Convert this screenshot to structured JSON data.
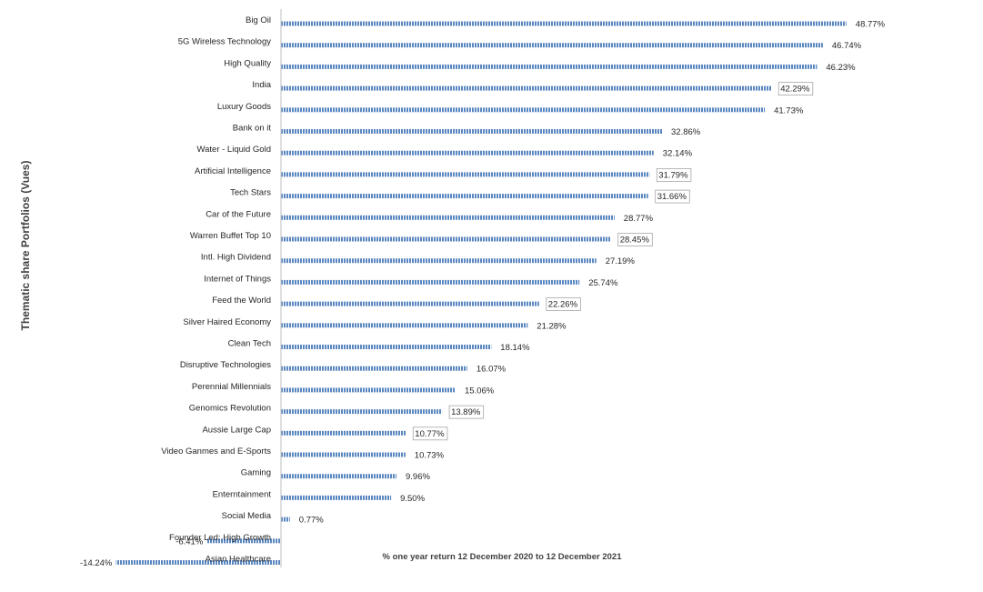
{
  "chart_data": {
    "type": "bar",
    "orientation": "horizontal",
    "title": "",
    "xlabel": "% one year return 12 December 2020 to 12 December 2021",
    "ylabel": "Thematic share Portfolios (Vues)",
    "categories": [
      "Big Oil",
      "5G Wireless Technology",
      "High Quality",
      "India",
      "Luxury Goods",
      "Bank on it",
      "Water - Liquid Gold",
      "Artificial Intelligence",
      "Tech Stars",
      "Car of the Future",
      "Warren Buffet Top 10",
      "Intl. High Dividend",
      "Internet of Things",
      "Feed the World",
      "Silver Haired Economy",
      "Clean Tech",
      "Disruptive Technologies",
      "Perennial Millennials",
      "Genomics Revolution",
      "Aussie Large Cap",
      "Video Ganmes and E-Sports",
      "Gaming",
      "Enterntainment",
      "Social Media",
      "Founder Led: High Growth",
      "Asian Healthcare"
    ],
    "values": [
      48.77,
      46.74,
      46.23,
      42.29,
      41.73,
      32.86,
      32.14,
      31.79,
      31.66,
      28.77,
      28.45,
      27.19,
      25.74,
      22.26,
      21.28,
      18.14,
      16.07,
      15.06,
      13.89,
      10.77,
      10.73,
      9.96,
      9.5,
      0.77,
      -6.41,
      -14.24
    ],
    "data_labels": [
      "48.77%",
      "46.74%",
      "46.23%",
      "42.29%",
      "41.73%",
      "32.86%",
      "32.14%",
      "31.79%",
      "31.66%",
      "28.77%",
      "28.45%",
      "27.19%",
      "25.74%",
      "22.26%",
      "21.28%",
      "18.14%",
      "16.07%",
      "15.06%",
      "13.89%",
      "10.77%",
      "10.73%",
      "9.96%",
      "9.50%",
      "0.77%",
      "-6.41%",
      "-14.24%"
    ],
    "boxed_labels": [
      "India",
      "Artificial Intelligence",
      "Tech Stars",
      "Warren Buffet Top 10",
      "Feed the World",
      "Genomics Revolution",
      "Aussie Large Cap"
    ],
    "xlim": [
      -14.24,
      48.77
    ],
    "grid": false,
    "legend": "none",
    "colors": {
      "bar": "#5b87c0",
      "bar_stripe": "#ffffff",
      "axis": "#bfbfbf",
      "text": "#262626",
      "label_box": "#a6a6a6"
    }
  }
}
